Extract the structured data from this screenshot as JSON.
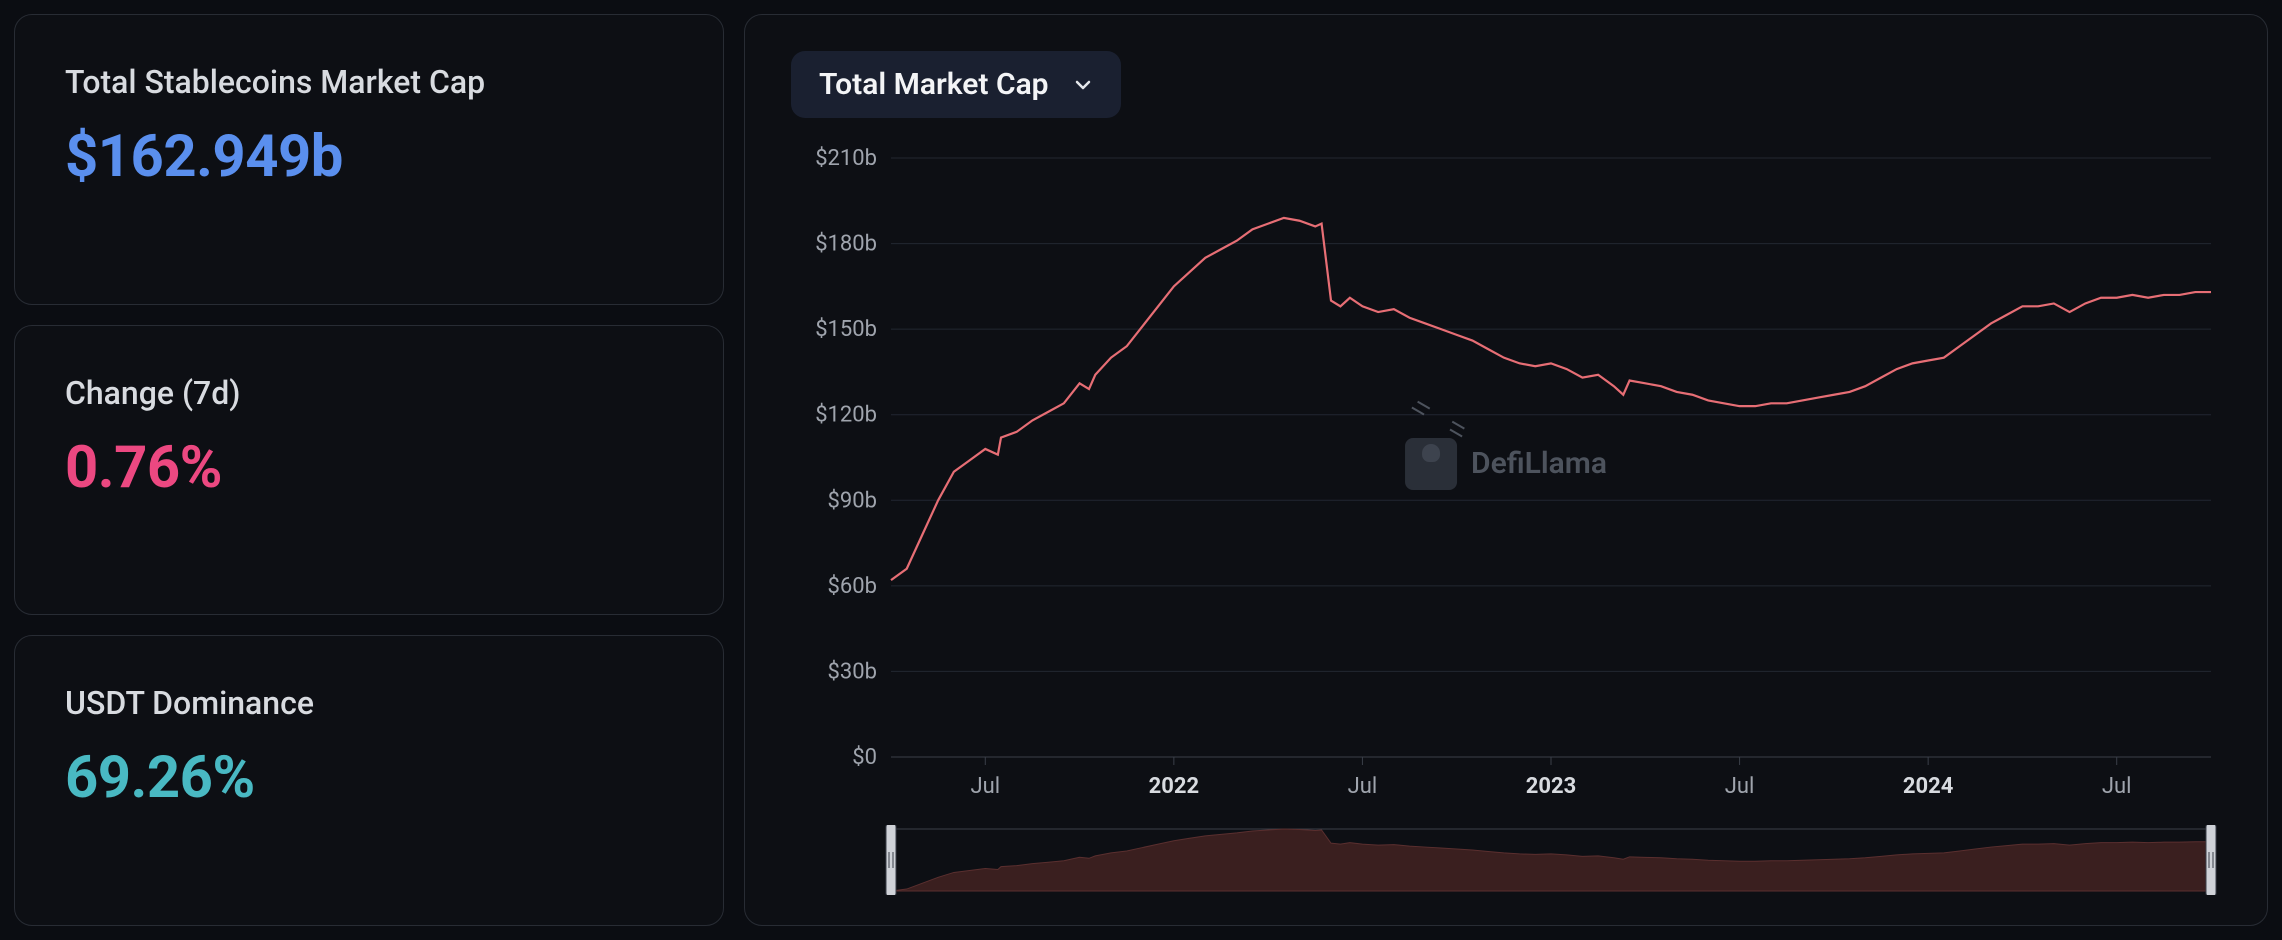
{
  "cards": {
    "market_cap": {
      "label": "Total Stablecoins Market Cap",
      "value": "$162.949b",
      "color": "#5a8fee"
    },
    "change_7d": {
      "label": "Change (7d)",
      "value": "0.76%",
      "color": "#ec4881"
    },
    "usdt_dom": {
      "label": "USDT Dominance",
      "value": "69.26%",
      "color": "#49b9c3"
    }
  },
  "dropdown": {
    "label": "Total Market Cap"
  },
  "watermark": "DefiLlama",
  "chart": {
    "type": "line",
    "background_color": "#0d0f14",
    "grid_color": "#222731",
    "axis_line_color": "#3a3f49",
    "axis_text_color": "#9fa4ad",
    "axis_text_bold_color": "#d8dbe0",
    "line_color": "#e76e75",
    "line_width": 2.2,
    "axis_fontsize": 22,
    "y": {
      "min": 0,
      "max": 210,
      "ticks": [
        0,
        30,
        60,
        90,
        120,
        150,
        180,
        210
      ],
      "tick_labels": [
        "$0",
        "$30b",
        "$60b",
        "$90b",
        "$120b",
        "$150b",
        "$180b",
        "$210b"
      ]
    },
    "x": {
      "min": 0,
      "max": 42,
      "ticks": [
        3,
        9,
        15,
        21,
        27,
        33,
        39
      ],
      "tick_labels": [
        "Jul",
        "2022",
        "Jul",
        "2023",
        "Jul",
        "2024",
        "Jul"
      ],
      "bold_idx": [
        1,
        3,
        5
      ]
    },
    "series": [
      {
        "x": 0,
        "y": 62
      },
      {
        "x": 0.5,
        "y": 66
      },
      {
        "x": 1,
        "y": 78
      },
      {
        "x": 1.5,
        "y": 90
      },
      {
        "x": 2,
        "y": 100
      },
      {
        "x": 2.5,
        "y": 104
      },
      {
        "x": 3,
        "y": 108
      },
      {
        "x": 3.4,
        "y": 106
      },
      {
        "x": 3.5,
        "y": 112
      },
      {
        "x": 4,
        "y": 114
      },
      {
        "x": 4.5,
        "y": 118
      },
      {
        "x": 5,
        "y": 121
      },
      {
        "x": 5.5,
        "y": 124
      },
      {
        "x": 6,
        "y": 131
      },
      {
        "x": 6.3,
        "y": 129
      },
      {
        "x": 6.5,
        "y": 134
      },
      {
        "x": 7,
        "y": 140
      },
      {
        "x": 7.5,
        "y": 144
      },
      {
        "x": 8,
        "y": 151
      },
      {
        "x": 8.5,
        "y": 158
      },
      {
        "x": 9,
        "y": 165
      },
      {
        "x": 9.5,
        "y": 170
      },
      {
        "x": 10,
        "y": 175
      },
      {
        "x": 10.5,
        "y": 178
      },
      {
        "x": 11,
        "y": 181
      },
      {
        "x": 11.5,
        "y": 185
      },
      {
        "x": 12,
        "y": 187
      },
      {
        "x": 12.5,
        "y": 189
      },
      {
        "x": 13,
        "y": 188
      },
      {
        "x": 13.5,
        "y": 186
      },
      {
        "x": 13.7,
        "y": 187
      },
      {
        "x": 14,
        "y": 160
      },
      {
        "x": 14.3,
        "y": 158
      },
      {
        "x": 14.6,
        "y": 161
      },
      {
        "x": 15,
        "y": 158
      },
      {
        "x": 15.5,
        "y": 156
      },
      {
        "x": 16,
        "y": 157
      },
      {
        "x": 16.5,
        "y": 154
      },
      {
        "x": 17,
        "y": 152
      },
      {
        "x": 17.5,
        "y": 150
      },
      {
        "x": 18,
        "y": 148
      },
      {
        "x": 18.5,
        "y": 146
      },
      {
        "x": 19,
        "y": 143
      },
      {
        "x": 19.5,
        "y": 140
      },
      {
        "x": 20,
        "y": 138
      },
      {
        "x": 20.5,
        "y": 137
      },
      {
        "x": 21,
        "y": 138
      },
      {
        "x": 21.5,
        "y": 136
      },
      {
        "x": 22,
        "y": 133
      },
      {
        "x": 22.5,
        "y": 134
      },
      {
        "x": 23,
        "y": 130
      },
      {
        "x": 23.3,
        "y": 127
      },
      {
        "x": 23.5,
        "y": 132
      },
      {
        "x": 24,
        "y": 131
      },
      {
        "x": 24.5,
        "y": 130
      },
      {
        "x": 25,
        "y": 128
      },
      {
        "x": 25.5,
        "y": 127
      },
      {
        "x": 26,
        "y": 125
      },
      {
        "x": 26.5,
        "y": 124
      },
      {
        "x": 27,
        "y": 123
      },
      {
        "x": 27.5,
        "y": 123
      },
      {
        "x": 28,
        "y": 124
      },
      {
        "x": 28.5,
        "y": 124
      },
      {
        "x": 29,
        "y": 125
      },
      {
        "x": 29.5,
        "y": 126
      },
      {
        "x": 30,
        "y": 127
      },
      {
        "x": 30.5,
        "y": 128
      },
      {
        "x": 31,
        "y": 130
      },
      {
        "x": 31.5,
        "y": 133
      },
      {
        "x": 32,
        "y": 136
      },
      {
        "x": 32.5,
        "y": 138
      },
      {
        "x": 33,
        "y": 139
      },
      {
        "x": 33.5,
        "y": 140
      },
      {
        "x": 34,
        "y": 144
      },
      {
        "x": 34.5,
        "y": 148
      },
      {
        "x": 35,
        "y": 152
      },
      {
        "x": 35.5,
        "y": 155
      },
      {
        "x": 36,
        "y": 158
      },
      {
        "x": 36.5,
        "y": 158
      },
      {
        "x": 37,
        "y": 159
      },
      {
        "x": 37.5,
        "y": 156
      },
      {
        "x": 38,
        "y": 159
      },
      {
        "x": 38.5,
        "y": 161
      },
      {
        "x": 39,
        "y": 161
      },
      {
        "x": 39.5,
        "y": 162
      },
      {
        "x": 40,
        "y": 161
      },
      {
        "x": 40.5,
        "y": 162
      },
      {
        "x": 41,
        "y": 162
      },
      {
        "x": 41.5,
        "y": 163
      },
      {
        "x": 42,
        "y": 163
      }
    ]
  },
  "brush": {
    "area_fill": "#3a1f1f",
    "area_stroke": "#5a2f2f",
    "frame_stroke": "#3a3f49",
    "handle_fill": "#cfd2d8"
  }
}
